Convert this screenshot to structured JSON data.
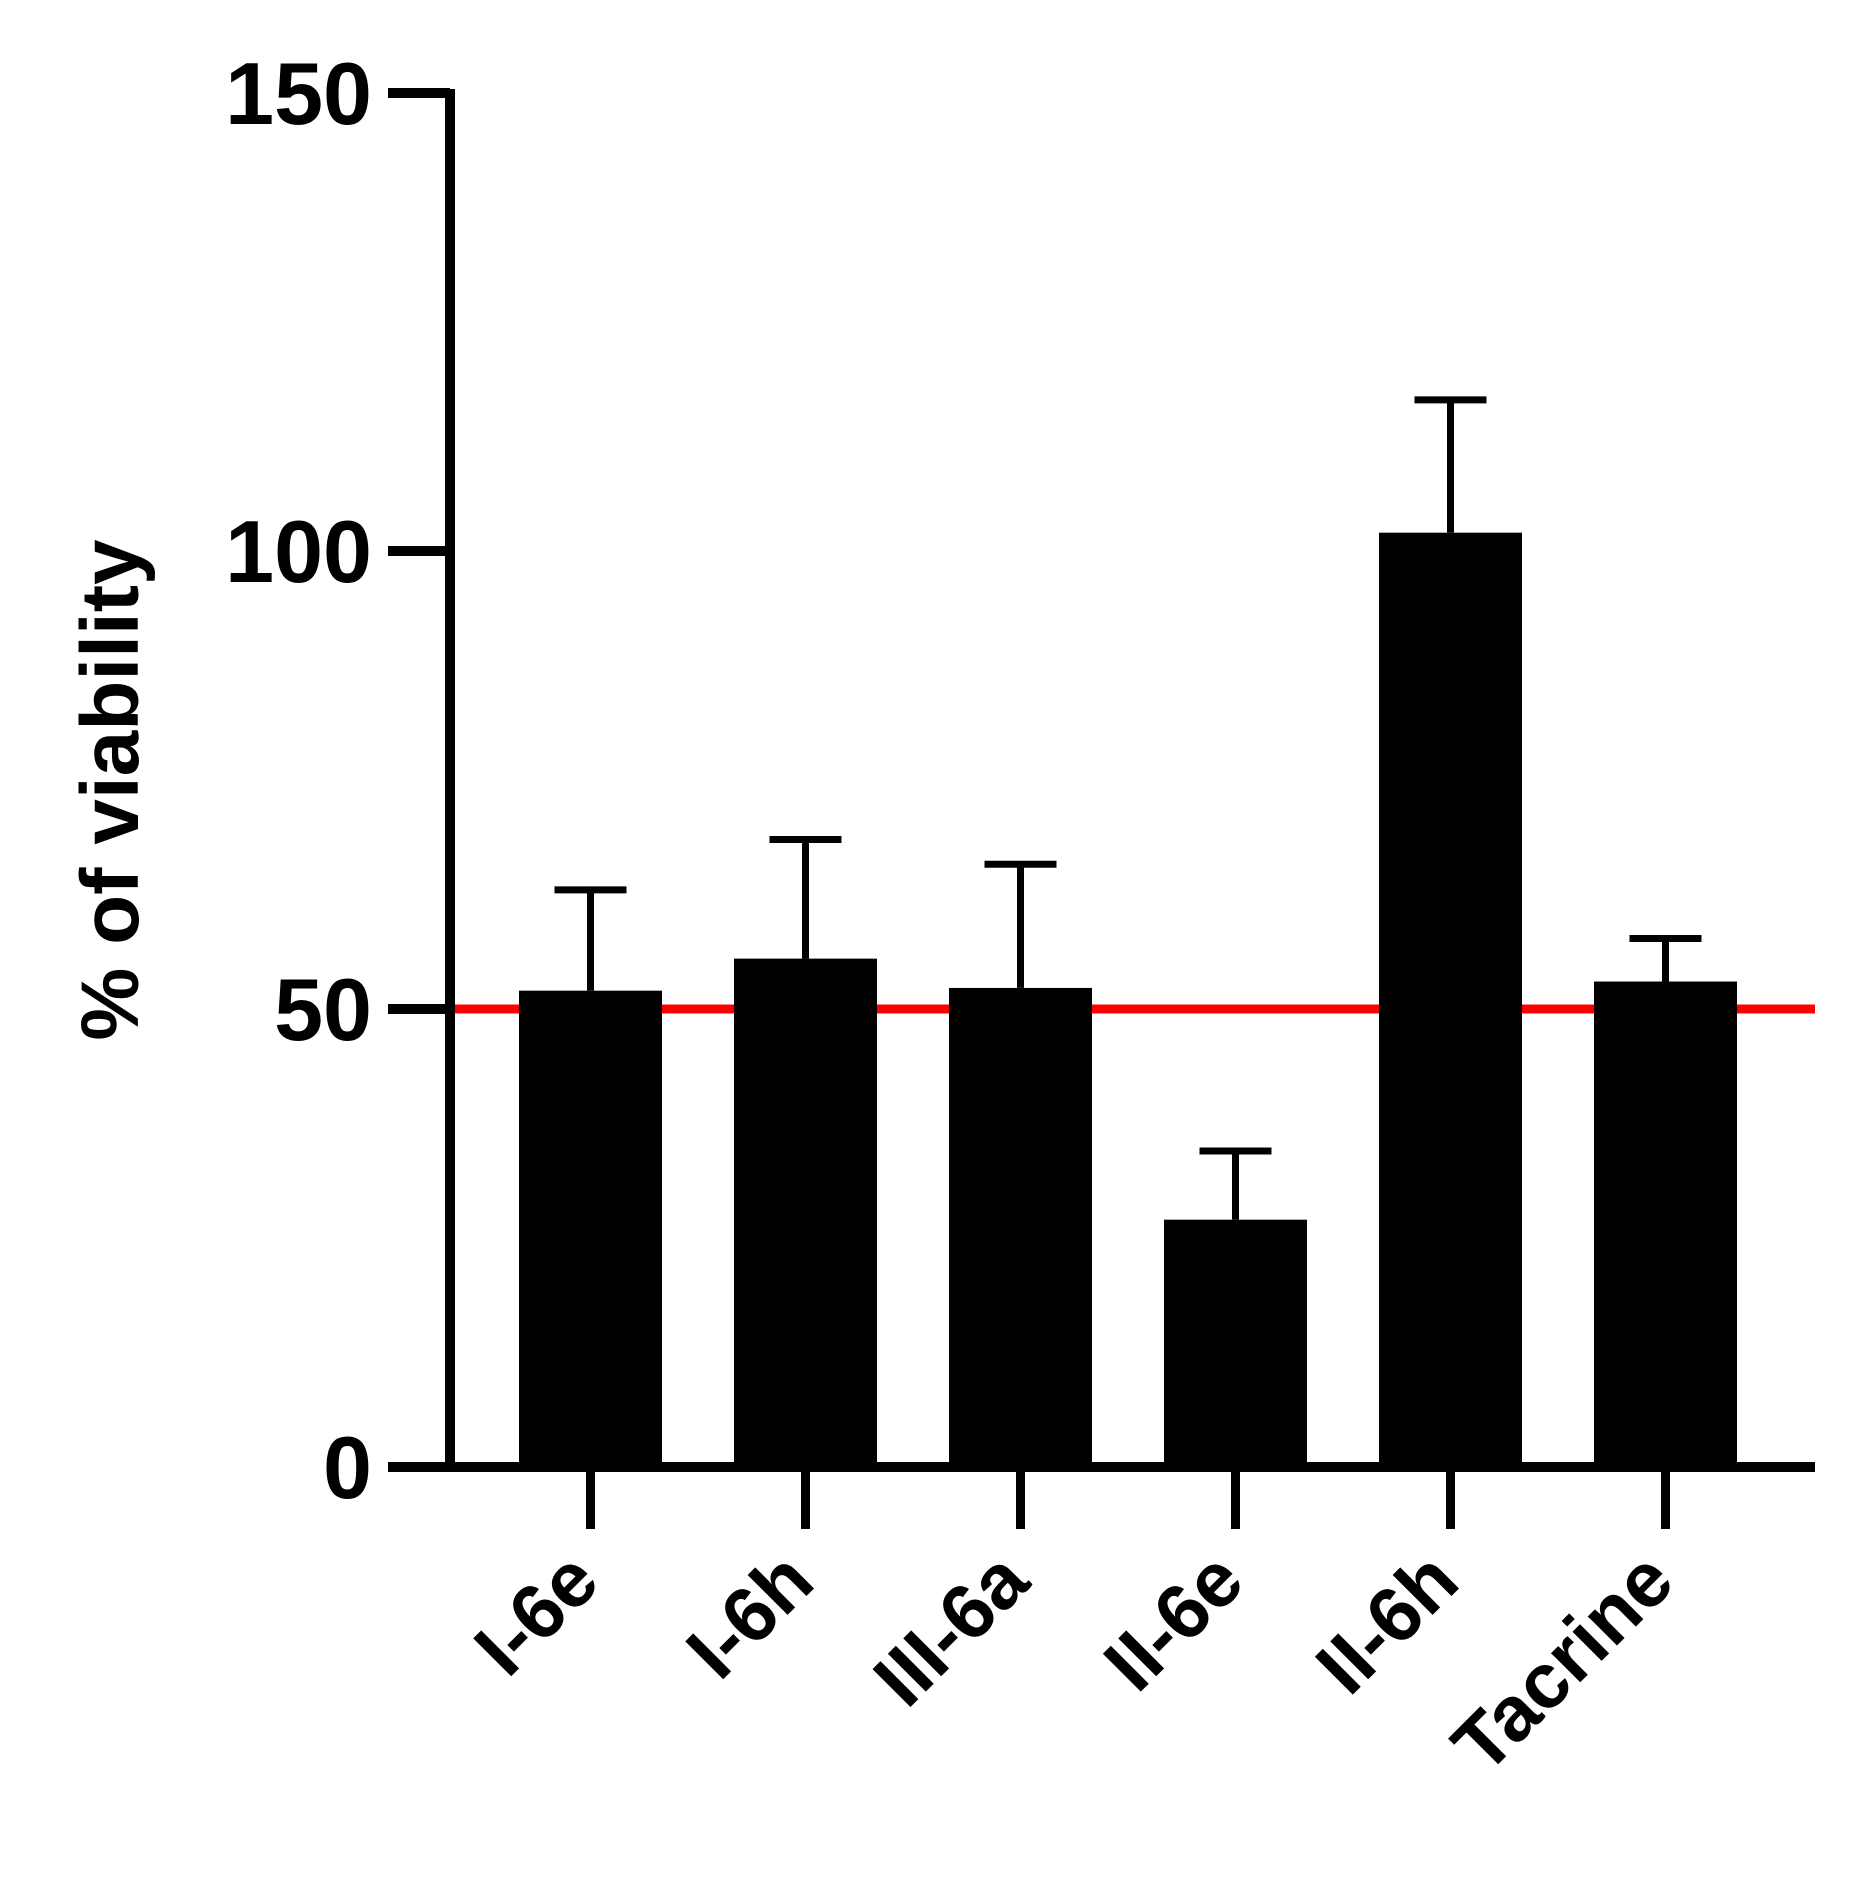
{
  "chart_data": {
    "type": "bar",
    "categories": [
      "I-6e",
      "I-6h",
      "III-6a",
      "II-6e",
      "II-6h",
      "Tacrine"
    ],
    "values": [
      52,
      55.5,
      52.3,
      27,
      102,
      53
    ],
    "errors": [
      11,
      13,
      13.5,
      7.5,
      14.5,
      4.7
    ],
    "title": "",
    "xlabel": "",
    "ylabel": "% of viability",
    "ylim": [
      0,
      150
    ],
    "yticks": [
      "0",
      "50",
      "100",
      "150"
    ],
    "reference_line": {
      "value": 50,
      "color": "#ff0000"
    },
    "bar_color": "#000000",
    "grid": false,
    "legend": "none"
  }
}
